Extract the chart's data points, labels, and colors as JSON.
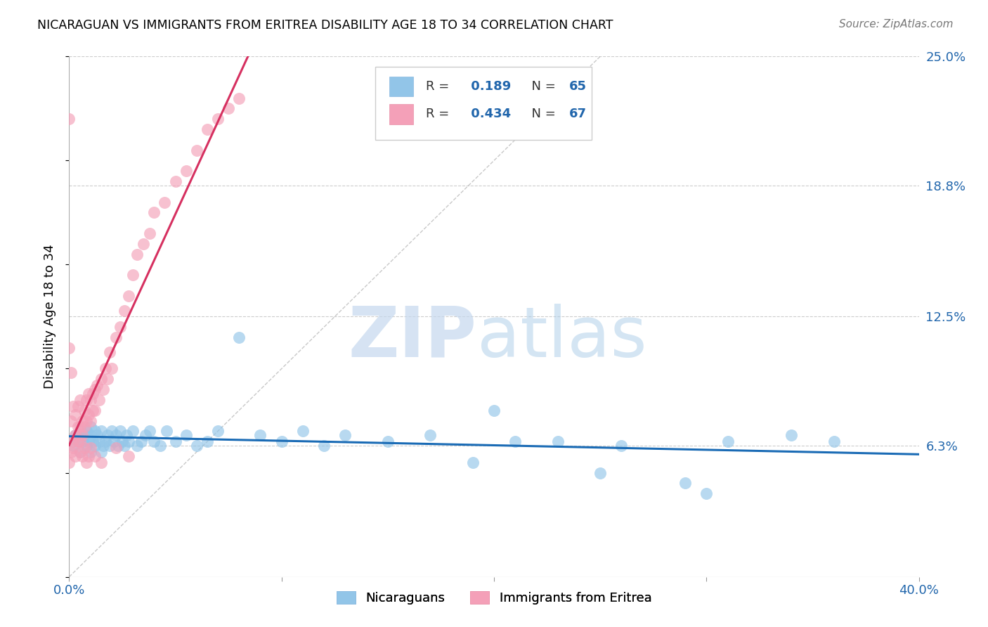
{
  "title": "NICARAGUAN VS IMMIGRANTS FROM ERITREA DISABILITY AGE 18 TO 34 CORRELATION CHART",
  "source": "Source: ZipAtlas.com",
  "ylabel": "Disability Age 18 to 34",
  "xlim": [
    0.0,
    0.4
  ],
  "ylim": [
    0.0,
    0.25
  ],
  "yticks_right": [
    0.0,
    0.063,
    0.125,
    0.188,
    0.25
  ],
  "ytick_labels_right": [
    "",
    "6.3%",
    "12.5%",
    "18.8%",
    "25.0%"
  ],
  "blue_color": "#92C5E8",
  "pink_color": "#F4A0B8",
  "trend_blue": "#1A6BB5",
  "trend_pink": "#D63060",
  "R_blue": 0.189,
  "N_blue": 65,
  "R_pink": 0.434,
  "N_pink": 67,
  "legend_label_blue": "Nicaraguans",
  "legend_label_pink": "Immigrants from Eritrea",
  "blue_x": [
    0.002,
    0.003,
    0.004,
    0.005,
    0.005,
    0.006,
    0.007,
    0.008,
    0.008,
    0.009,
    0.01,
    0.01,
    0.01,
    0.011,
    0.012,
    0.012,
    0.013,
    0.014,
    0.015,
    0.015,
    0.016,
    0.017,
    0.018,
    0.019,
    0.02,
    0.021,
    0.022,
    0.023,
    0.024,
    0.025,
    0.026,
    0.027,
    0.028,
    0.03,
    0.032,
    0.034,
    0.036,
    0.038,
    0.04,
    0.043,
    0.046,
    0.05,
    0.055,
    0.06,
    0.065,
    0.07,
    0.08,
    0.09,
    0.1,
    0.11,
    0.12,
    0.13,
    0.15,
    0.17,
    0.19,
    0.21,
    0.23,
    0.26,
    0.29,
    0.31,
    0.34,
    0.36,
    0.2,
    0.25,
    0.3
  ],
  "blue_y": [
    0.063,
    0.068,
    0.065,
    0.07,
    0.06,
    0.065,
    0.068,
    0.063,
    0.07,
    0.065,
    0.072,
    0.068,
    0.06,
    0.065,
    0.07,
    0.063,
    0.068,
    0.065,
    0.07,
    0.06,
    0.063,
    0.065,
    0.068,
    0.063,
    0.07,
    0.065,
    0.068,
    0.063,
    0.07,
    0.065,
    0.063,
    0.068,
    0.065,
    0.07,
    0.063,
    0.065,
    0.068,
    0.07,
    0.065,
    0.063,
    0.07,
    0.065,
    0.068,
    0.063,
    0.065,
    0.07,
    0.115,
    0.068,
    0.065,
    0.07,
    0.063,
    0.068,
    0.065,
    0.068,
    0.055,
    0.065,
    0.065,
    0.063,
    0.045,
    0.065,
    0.068,
    0.065,
    0.08,
    0.05,
    0.04
  ],
  "pink_x": [
    0.0,
    0.0,
    0.001,
    0.001,
    0.002,
    0.002,
    0.003,
    0.003,
    0.004,
    0.004,
    0.005,
    0.005,
    0.005,
    0.006,
    0.006,
    0.007,
    0.007,
    0.008,
    0.008,
    0.009,
    0.009,
    0.01,
    0.01,
    0.011,
    0.011,
    0.012,
    0.012,
    0.013,
    0.014,
    0.015,
    0.016,
    0.017,
    0.018,
    0.019,
    0.02,
    0.022,
    0.024,
    0.026,
    0.028,
    0.03,
    0.032,
    0.035,
    0.038,
    0.04,
    0.045,
    0.05,
    0.055,
    0.06,
    0.065,
    0.07,
    0.075,
    0.08,
    0.0,
    0.001,
    0.002,
    0.003,
    0.004,
    0.005,
    0.006,
    0.007,
    0.008,
    0.009,
    0.01,
    0.012,
    0.015,
    0.022,
    0.028
  ],
  "pink_y": [
    0.22,
    0.11,
    0.075,
    0.098,
    0.065,
    0.082,
    0.068,
    0.078,
    0.072,
    0.082,
    0.065,
    0.072,
    0.085,
    0.075,
    0.068,
    0.08,
    0.072,
    0.085,
    0.075,
    0.088,
    0.078,
    0.085,
    0.075,
    0.088,
    0.08,
    0.09,
    0.08,
    0.092,
    0.085,
    0.095,
    0.09,
    0.1,
    0.095,
    0.108,
    0.1,
    0.115,
    0.12,
    0.128,
    0.135,
    0.145,
    0.155,
    0.16,
    0.165,
    0.175,
    0.18,
    0.19,
    0.195,
    0.205,
    0.215,
    0.22,
    0.225,
    0.23,
    0.055,
    0.06,
    0.062,
    0.058,
    0.065,
    0.06,
    0.058,
    0.062,
    0.055,
    0.058,
    0.062,
    0.058,
    0.055,
    0.062,
    0.058
  ]
}
